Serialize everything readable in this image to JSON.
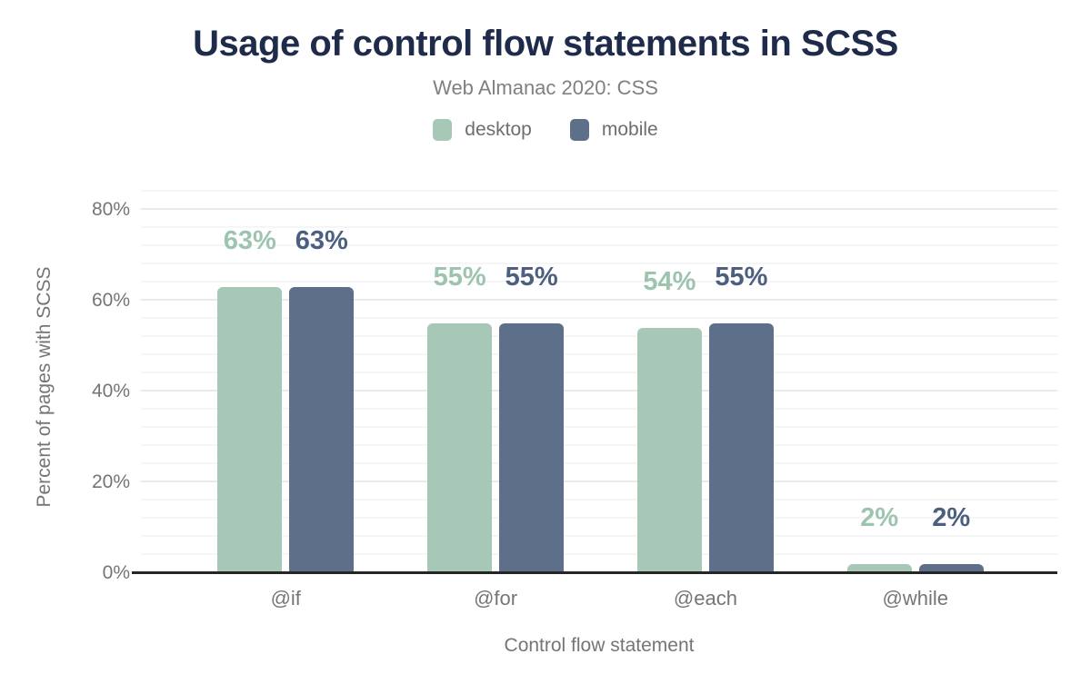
{
  "figure": {
    "title": "Usage of control flow statements in SCSS",
    "subtitle": "Web Almanac 2020: CSS"
  },
  "chart_data": {
    "type": "bar",
    "title": "Usage of control flow statements in SCSS",
    "subtitle": "Web Almanac 2020: CSS",
    "categories": [
      "@if",
      "@for",
      "@each",
      "@while"
    ],
    "series": [
      {
        "name": "desktop",
        "color": "#a7c8b7",
        "label_color": "#9dc4ae",
        "values": [
          63,
          55,
          54,
          2
        ]
      },
      {
        "name": "mobile",
        "color": "#5e6f8a",
        "label_color": "#4c5f80",
        "values": [
          63,
          55,
          55,
          2
        ]
      }
    ],
    "value_suffix": "%",
    "xlabel": "Control flow statement",
    "ylabel": "Percent of pages with SCSS",
    "ylim": [
      0,
      80
    ],
    "y_ticks": [
      "0%",
      "20%",
      "40%",
      "60%",
      "80%"
    ],
    "y_tick_values": [
      0,
      20,
      40,
      60,
      80
    ],
    "grid": "horizontal, minor every 4%, major every 20%",
    "legend_position": "top"
  },
  "colors": {
    "title": "#1f2b4a",
    "axis_line": "#262626",
    "grid_major": "#eaeaea",
    "grid_minor": "#f6f6f6",
    "text_muted": "#757575",
    "figure_border": "#1f2b4a"
  }
}
